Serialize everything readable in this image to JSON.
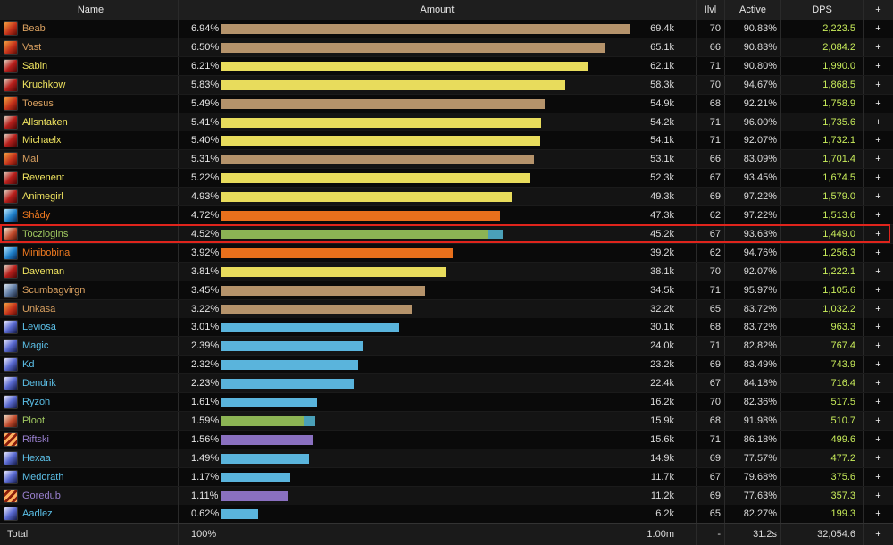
{
  "header": {
    "name": "Name",
    "amount": "Amount",
    "ilvl": "Ilvl",
    "active": "Active",
    "dps": "DPS",
    "plus": "+"
  },
  "rows": [
    {
      "name": "Beab",
      "name_color": "#d9a060",
      "icon": "ic-fire",
      "pct": "6.94%",
      "amount": "69.4k",
      "ilvl": "70",
      "active": "90.83%",
      "dps": "2,223.5",
      "bar_fraction": 0.694,
      "bar_color": "#b5936b"
    },
    {
      "name": "Vast",
      "name_color": "#d9a060",
      "icon": "ic-fire",
      "pct": "6.50%",
      "amount": "65.1k",
      "ilvl": "66",
      "active": "90.83%",
      "dps": "2,084.2",
      "bar_fraction": 0.651,
      "bar_color": "#b5936b"
    },
    {
      "name": "Sabin",
      "name_color": "#f0e460",
      "icon": "ic-red",
      "pct": "6.21%",
      "amount": "62.1k",
      "ilvl": "71",
      "active": "90.80%",
      "dps": "1,990.0",
      "bar_fraction": 0.621,
      "bar_color": "#e8dc5c"
    },
    {
      "name": "Kruchkow",
      "name_color": "#f0e460",
      "icon": "ic-red",
      "pct": "5.83%",
      "amount": "58.3k",
      "ilvl": "70",
      "active": "94.67%",
      "dps": "1,868.5",
      "bar_fraction": 0.583,
      "bar_color": "#e8dc5c"
    },
    {
      "name": "Toesus",
      "name_color": "#d9a060",
      "icon": "ic-fire",
      "pct": "5.49%",
      "amount": "54.9k",
      "ilvl": "68",
      "active": "92.21%",
      "dps": "1,758.9",
      "bar_fraction": 0.549,
      "bar_color": "#b5936b"
    },
    {
      "name": "Allsntaken",
      "name_color": "#f0e460",
      "icon": "ic-red",
      "pct": "5.41%",
      "amount": "54.2k",
      "ilvl": "71",
      "active": "96.00%",
      "dps": "1,735.6",
      "bar_fraction": 0.542,
      "bar_color": "#e8dc5c"
    },
    {
      "name": "Michaelx",
      "name_color": "#f0e460",
      "icon": "ic-red",
      "pct": "5.40%",
      "amount": "54.1k",
      "ilvl": "71",
      "active": "92.07%",
      "dps": "1,732.1",
      "bar_fraction": 0.541,
      "bar_color": "#e8dc5c"
    },
    {
      "name": "Mal",
      "name_color": "#d9a060",
      "icon": "ic-fire",
      "pct": "5.31%",
      "amount": "53.1k",
      "ilvl": "66",
      "active": "83.09%",
      "dps": "1,701.4",
      "bar_fraction": 0.531,
      "bar_color": "#b5936b"
    },
    {
      "name": "Revenent",
      "name_color": "#f0e460",
      "icon": "ic-red",
      "pct": "5.22%",
      "amount": "52.3k",
      "ilvl": "67",
      "active": "93.45%",
      "dps": "1,674.5",
      "bar_fraction": 0.523,
      "bar_color": "#e8dc5c"
    },
    {
      "name": "Animegirl",
      "name_color": "#f0e460",
      "icon": "ic-red",
      "pct": "4.93%",
      "amount": "49.3k",
      "ilvl": "69",
      "active": "97.22%",
      "dps": "1,579.0",
      "bar_fraction": 0.493,
      "bar_color": "#e8dc5c"
    },
    {
      "name": "Shådy",
      "name_color": "#f07a20",
      "icon": "ic-frost",
      "pct": "4.72%",
      "amount": "47.3k",
      "ilvl": "62",
      "active": "97.22%",
      "dps": "1,513.6",
      "bar_fraction": 0.473,
      "bar_color": "#e8701c"
    },
    {
      "name": "Toczlogins",
      "name_color": "#a0c860",
      "icon": "ic-beast",
      "pct": "4.52%",
      "amount": "45.2k",
      "ilvl": "67",
      "active": "93.63%",
      "dps": "1,449.0",
      "bar_fraction": 0.452,
      "bar_color": "#8cb454",
      "bar2_fraction": 0.025,
      "bar2_color": "#4aa0b8"
    },
    {
      "name": "Minibobina",
      "name_color": "#f07a20",
      "icon": "ic-frost",
      "pct": "3.92%",
      "amount": "39.2k",
      "ilvl": "62",
      "active": "94.76%",
      "dps": "1,256.3",
      "bar_fraction": 0.392,
      "bar_color": "#e8701c"
    },
    {
      "name": "Daveman",
      "name_color": "#f0e460",
      "icon": "ic-red",
      "pct": "3.81%",
      "amount": "38.1k",
      "ilvl": "70",
      "active": "92.07%",
      "dps": "1,222.1",
      "bar_fraction": 0.381,
      "bar_color": "#e8dc5c"
    },
    {
      "name": "Scumbagvirgn",
      "name_color": "#d9a060",
      "icon": "ic-steel",
      "pct": "3.45%",
      "amount": "34.5k",
      "ilvl": "71",
      "active": "95.97%",
      "dps": "1,105.6",
      "bar_fraction": 0.345,
      "bar_color": "#b5936b"
    },
    {
      "name": "Unkasa",
      "name_color": "#d9a060",
      "icon": "ic-fire",
      "pct": "3.22%",
      "amount": "32.2k",
      "ilvl": "65",
      "active": "83.72%",
      "dps": "1,032.2",
      "bar_fraction": 0.322,
      "bar_color": "#b5936b"
    },
    {
      "name": "Leviosa",
      "name_color": "#5cc0e8",
      "icon": "ic-void",
      "pct": "3.01%",
      "amount": "30.1k",
      "ilvl": "68",
      "active": "83.72%",
      "dps": "963.3",
      "bar_fraction": 0.301,
      "bar_color": "#5ab4dc"
    },
    {
      "name": "Magic",
      "name_color": "#5cc0e8",
      "icon": "ic-void",
      "pct": "2.39%",
      "amount": "24.0k",
      "ilvl": "71",
      "active": "82.82%",
      "dps": "767.4",
      "bar_fraction": 0.24,
      "bar_color": "#5ab4dc"
    },
    {
      "name": "Kd",
      "name_color": "#5cc0e8",
      "icon": "ic-void",
      "pct": "2.32%",
      "amount": "23.2k",
      "ilvl": "69",
      "active": "83.49%",
      "dps": "743.9",
      "bar_fraction": 0.232,
      "bar_color": "#5ab4dc"
    },
    {
      "name": "Dendrik",
      "name_color": "#5cc0e8",
      "icon": "ic-void",
      "pct": "2.23%",
      "amount": "22.4k",
      "ilvl": "67",
      "active": "84.18%",
      "dps": "716.4",
      "bar_fraction": 0.224,
      "bar_color": "#5ab4dc"
    },
    {
      "name": "Ryzoh",
      "name_color": "#5cc0e8",
      "icon": "ic-void",
      "pct": "1.61%",
      "amount": "16.2k",
      "ilvl": "70",
      "active": "82.36%",
      "dps": "517.5",
      "bar_fraction": 0.162,
      "bar_color": "#5ab4dc"
    },
    {
      "name": "Ploot",
      "name_color": "#a0c860",
      "icon": "ic-beast",
      "pct": "1.59%",
      "amount": "15.9k",
      "ilvl": "68",
      "active": "91.98%",
      "dps": "510.7",
      "bar_fraction": 0.14,
      "bar_color": "#8cb454",
      "bar2_fraction": 0.019,
      "bar2_color": "#4aa0b8"
    },
    {
      "name": "Riftski",
      "name_color": "#9a80d0",
      "icon": "ic-strike",
      "pct": "1.56%",
      "amount": "15.6k",
      "ilvl": "71",
      "active": "86.18%",
      "dps": "499.6",
      "bar_fraction": 0.156,
      "bar_color": "#8a70c0"
    },
    {
      "name": "Hexaa",
      "name_color": "#5cc0e8",
      "icon": "ic-void",
      "pct": "1.49%",
      "amount": "14.9k",
      "ilvl": "69",
      "active": "77.57%",
      "dps": "477.2",
      "bar_fraction": 0.149,
      "bar_color": "#5ab4dc"
    },
    {
      "name": "Medorath",
      "name_color": "#5cc0e8",
      "icon": "ic-void",
      "pct": "1.17%",
      "amount": "11.7k",
      "ilvl": "67",
      "active": "79.68%",
      "dps": "375.6",
      "bar_fraction": 0.117,
      "bar_color": "#5ab4dc"
    },
    {
      "name": "Goredub",
      "name_color": "#9a80d0",
      "icon": "ic-strike",
      "pct": "1.11%",
      "amount": "11.2k",
      "ilvl": "69",
      "active": "77.63%",
      "dps": "357.3",
      "bar_fraction": 0.112,
      "bar_color": "#8a70c0"
    },
    {
      "name": "Aadlez",
      "name_color": "#5cc0e8",
      "icon": "ic-void",
      "pct": "0.62%",
      "amount": "6.2k",
      "ilvl": "65",
      "active": "82.27%",
      "dps": "199.3",
      "bar_fraction": 0.062,
      "bar_color": "#5ab4dc"
    }
  ],
  "highlighted_row": "Toczlogins",
  "total": {
    "label": "Total",
    "pct": "100%",
    "amount": "1.00m",
    "ilvl": "-",
    "active": "31.2s",
    "dps": "32,054.6",
    "plus": "+"
  }
}
